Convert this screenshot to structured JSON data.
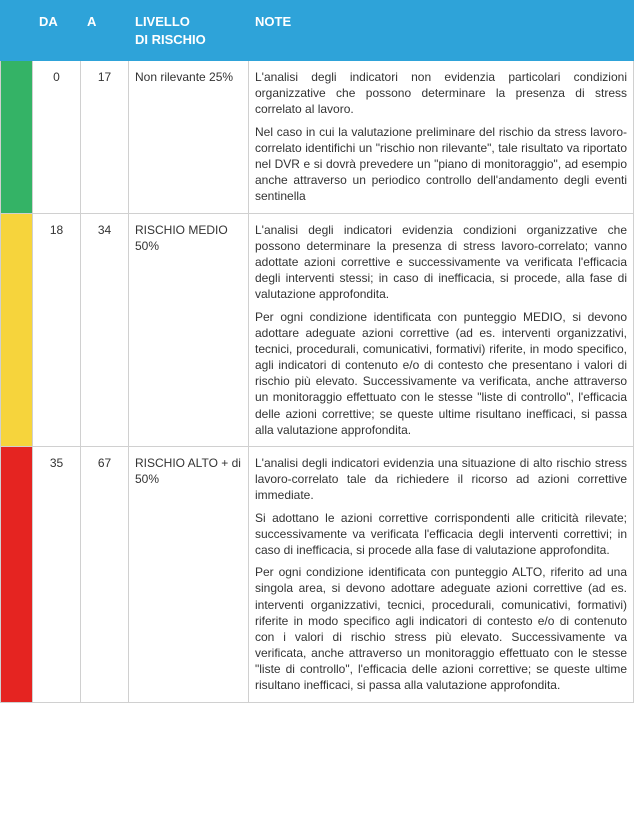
{
  "header_bg": "#2ea3d9",
  "columns": {
    "da": "DA",
    "a": "A",
    "livello": "LIVELLO DI RISCHIO",
    "note": "NOTE"
  },
  "rows": [
    {
      "stripe_color": "#34b366",
      "da": "0",
      "a": "17",
      "livello": "Non rilevante 25%",
      "note": [
        "L'analisi degli indicatori non evidenzia particolari condizioni organizzative che possono determinare la presenza di stress correlato al lavoro.",
        "Nel caso in cui la valutazione preliminare del rischio da stress lavoro-correlato identifichi un \"rischio non rilevante\", tale risultato va riportato nel DVR e si dovrà prevedere un \"piano di monitoraggio\", ad esempio anche attraverso un periodico controllo dell'andamento degli eventi sentinella"
      ]
    },
    {
      "stripe_color": "#f6d43c",
      "da": "18",
      "a": "34",
      "livello": "RISCHIO MEDIO 50%",
      "note": [
        "L'analisi degli indicatori evidenzia condizioni organizzative che possono determinare la presenza di stress lavoro-correlato; vanno adottate azioni correttive e successivamente va verificata l'efficacia degli interventi stessi; in caso di inefficacia, si procede, alla fase di valutazione approfondita.",
        "Per ogni condizione identificata con punteggio MEDIO, si devono adottare adeguate azioni correttive (ad es. interventi organizzativi, tecnici, procedurali, comunicativi, formativi) riferite, in modo specifico, agli indicatori di contenuto e/o di contesto che presentano i valori di rischio più elevato. Successivamente va verificata, anche attraverso un monitoraggio effettuato con le stesse \"liste di controllo\", l'efficacia delle azioni correttive; se queste ultime risultano inefficaci, si passa alla valutazione approfondita."
      ]
    },
    {
      "stripe_color": "#e52421",
      "da": "35",
      "a": "67",
      "livello": "RISCHIO ALTO + di 50%",
      "note": [
        "L'analisi degli indicatori evidenzia una situazione di alto rischio stress lavoro-correlato tale da richiedere il ricorso ad azioni correttive immediate.",
        "Si adottano le azioni correttive corrispondenti alle criticità rilevate; successivamente va verificata l'efficacia degli interventi correttivi; in caso di inefficacia, si procede alla fase di valutazione approfondita.",
        "Per ogni condizione identificata con punteggio ALTO, riferito ad una singola area, si devono adottare adeguate azioni correttive (ad es. interventi organizzativi, tecnici, procedurali, comunicativi, formativi) riferite in modo specifico agli indicatori di contesto e/o di contenuto con i valori di rischio stress più elevato. Successivamente va verificata, anche attraverso un monitoraggio effettuato con le stesse \"liste di controllo\", l'efficacia delle azioni correttive; se queste ultime risultano inefficaci, si passa alla valutazione approfondita."
      ]
    }
  ]
}
